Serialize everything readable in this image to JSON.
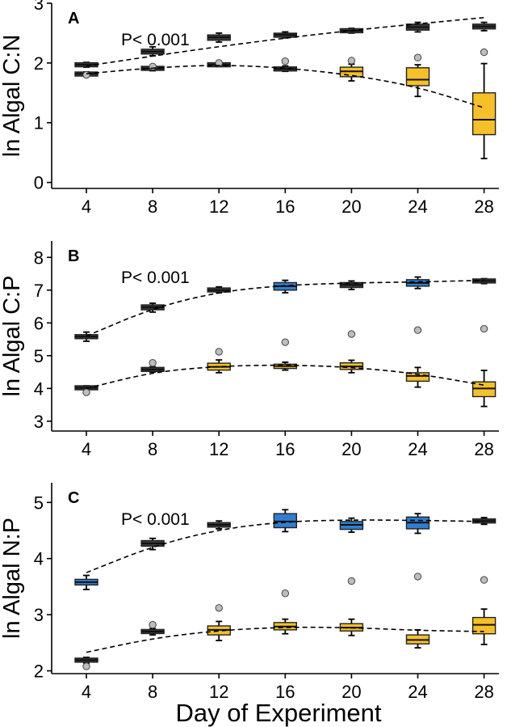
{
  "xlabel": "Day of Experiment",
  "chart_data": [
    {
      "type": "box",
      "panel_label": "A",
      "annotation": "P< 0.001",
      "ylabel": "ln Algal C:N",
      "ylim": [
        -0.1,
        3.0
      ],
      "yticks": [
        0,
        1,
        2,
        3
      ],
      "categories": [
        4,
        8,
        12,
        16,
        20,
        24,
        28
      ],
      "series": [
        {
          "color": "#3a3a3a",
          "boxes": [
            {
              "day": 4,
              "q1": 1.95,
              "median": 1.97,
              "q3": 1.99,
              "lo": 1.93,
              "hi": 2.01
            },
            {
              "day": 8,
              "q1": 2.15,
              "median": 2.19,
              "q3": 2.23,
              "lo": 2.12,
              "hi": 2.27
            },
            {
              "day": 12,
              "q1": 2.38,
              "median": 2.43,
              "q3": 2.47,
              "lo": 2.35,
              "hi": 2.5
            },
            {
              "day": 16,
              "q1": 2.44,
              "median": 2.47,
              "q3": 2.49,
              "lo": 2.42,
              "hi": 2.52
            },
            {
              "day": 20,
              "q1": 2.52,
              "median": 2.54,
              "q3": 2.56,
              "lo": 2.5,
              "hi": 2.58
            },
            {
              "day": 24,
              "q1": 2.55,
              "median": 2.6,
              "q3": 2.65,
              "lo": 2.52,
              "hi": 2.68
            },
            {
              "day": 28,
              "q1": 2.57,
              "median": 2.61,
              "q3": 2.65,
              "lo": 2.54,
              "hi": 2.68
            }
          ],
          "fit": [
            [
              4,
              1.95
            ],
            [
              12,
              2.28
            ],
            [
              20,
              2.55
            ],
            [
              28,
              2.76
            ]
          ]
        },
        {
          "boxes": [
            {
              "day": 4,
              "q1": 1.79,
              "median": 1.82,
              "q3": 1.84,
              "lo": 1.78,
              "hi": 1.85,
              "fill": "#3a3a3a",
              "outliers": [
                1.8
              ]
            },
            {
              "day": 8,
              "q1": 1.89,
              "median": 1.91,
              "q3": 1.93,
              "lo": 1.87,
              "hi": 1.95,
              "fill": "#3a3a3a",
              "outliers": [
                1.94
              ]
            },
            {
              "day": 12,
              "q1": 1.95,
              "median": 1.97,
              "q3": 1.99,
              "lo": 1.94,
              "hi": 2.01,
              "fill": "#3a3a3a",
              "outliers": [
                2.0
              ]
            },
            {
              "day": 16,
              "q1": 1.87,
              "median": 1.9,
              "q3": 1.93,
              "lo": 1.86,
              "hi": 1.95,
              "fill": "#3a3a3a",
              "outliers": [
                2.03
              ]
            },
            {
              "day": 20,
              "q1": 1.77,
              "median": 1.86,
              "q3": 1.93,
              "lo": 1.7,
              "hi": 1.98,
              "fill": "#f5c02a",
              "outliers": [
                2.04
              ]
            },
            {
              "day": 24,
              "q1": 1.62,
              "median": 1.72,
              "q3": 1.92,
              "lo": 1.44,
              "hi": 1.97,
              "fill": "#f5c02a",
              "outliers": [
                2.09
              ]
            },
            {
              "day": 28,
              "q1": 0.8,
              "median": 1.05,
              "q3": 1.5,
              "lo": 0.4,
              "hi": 1.99,
              "fill": "#f5c02a",
              "outliers": [
                2.18
              ]
            }
          ],
          "fit": [
            [
              4,
              1.82
            ],
            [
              8,
              1.92
            ],
            [
              12,
              1.97
            ],
            [
              16,
              1.92
            ],
            [
              20,
              1.8
            ],
            [
              24,
              1.6
            ],
            [
              28,
              1.25
            ]
          ]
        }
      ]
    },
    {
      "type": "box",
      "panel_label": "B",
      "annotation": "P< 0.001",
      "ylabel": "ln Algal C:P",
      "ylim": [
        2.7,
        8.5
      ],
      "yticks": [
        3,
        4,
        5,
        6,
        7,
        8
      ],
      "categories": [
        4,
        8,
        12,
        16,
        20,
        24,
        28
      ],
      "series": [
        {
          "boxes": [
            {
              "day": 4,
              "q1": 5.52,
              "median": 5.58,
              "q3": 5.64,
              "lo": 5.44,
              "hi": 5.72,
              "fill": "#3a3a3a"
            },
            {
              "day": 8,
              "q1": 6.4,
              "median": 6.48,
              "q3": 6.55,
              "lo": 6.33,
              "hi": 6.6,
              "fill": "#3a3a3a"
            },
            {
              "day": 12,
              "q1": 6.96,
              "median": 7.0,
              "q3": 7.05,
              "lo": 6.92,
              "hi": 7.1,
              "fill": "#3a3a3a"
            },
            {
              "day": 16,
              "q1": 7.0,
              "median": 7.12,
              "q3": 7.23,
              "lo": 6.92,
              "hi": 7.3,
              "fill": "#2f7fd0"
            },
            {
              "day": 20,
              "q1": 7.08,
              "median": 7.16,
              "q3": 7.23,
              "lo": 7.02,
              "hi": 7.28,
              "fill": "#3a3a3a"
            },
            {
              "day": 24,
              "q1": 7.12,
              "median": 7.22,
              "q3": 7.32,
              "lo": 7.05,
              "hi": 7.4,
              "fill": "#2f7fd0"
            },
            {
              "day": 28,
              "q1": 7.24,
              "median": 7.28,
              "q3": 7.32,
              "lo": 7.2,
              "hi": 7.35,
              "fill": "#3a3a3a"
            }
          ],
          "fit": [
            [
              4,
              5.6
            ],
            [
              8,
              6.45
            ],
            [
              12,
              6.95
            ],
            [
              16,
              7.15
            ],
            [
              20,
              7.22
            ],
            [
              24,
              7.25
            ],
            [
              28,
              7.3
            ]
          ]
        },
        {
          "boxes": [
            {
              "day": 4,
              "q1": 3.98,
              "median": 4.02,
              "q3": 4.06,
              "lo": 3.96,
              "hi": 4.08,
              "fill": "#3a3a3a",
              "outliers": [
                3.88
              ]
            },
            {
              "day": 8,
              "q1": 4.54,
              "median": 4.58,
              "q3": 4.62,
              "lo": 4.5,
              "hi": 4.66,
              "fill": "#3a3a3a",
              "outliers": [
                4.78
              ]
            },
            {
              "day": 12,
              "q1": 4.56,
              "median": 4.66,
              "q3": 4.77,
              "lo": 4.48,
              "hi": 4.87,
              "fill": "#f5c02a",
              "outliers": [
                5.12
              ]
            },
            {
              "day": 16,
              "q1": 4.61,
              "median": 4.68,
              "q3": 4.74,
              "lo": 4.56,
              "hi": 4.8,
              "fill": "#f5c02a",
              "outliers": [
                5.41
              ]
            },
            {
              "day": 20,
              "q1": 4.58,
              "median": 4.67,
              "q3": 4.78,
              "lo": 4.48,
              "hi": 4.86,
              "fill": "#f5c02a",
              "outliers": [
                5.66
              ]
            },
            {
              "day": 24,
              "q1": 4.22,
              "median": 4.38,
              "q3": 4.48,
              "lo": 4.04,
              "hi": 4.64,
              "fill": "#f5c02a",
              "outliers": [
                5.78
              ]
            },
            {
              "day": 28,
              "q1": 3.75,
              "median": 4.0,
              "q3": 4.2,
              "lo": 3.45,
              "hi": 4.55,
              "fill": "#f5c02a",
              "outliers": [
                5.82
              ]
            }
          ],
          "fit": [
            [
              4,
              4.0
            ],
            [
              8,
              4.5
            ],
            [
              12,
              4.68
            ],
            [
              16,
              4.72
            ],
            [
              20,
              4.65
            ],
            [
              24,
              4.45
            ],
            [
              28,
              4.1
            ]
          ]
        }
      ]
    },
    {
      "type": "box",
      "panel_label": "C",
      "annotation": "P< 0.001",
      "ylabel": "ln Algal N:P",
      "ylim": [
        1.95,
        5.35
      ],
      "yticks": [
        2,
        3,
        4,
        5
      ],
      "categories": [
        4,
        8,
        12,
        16,
        20,
        24,
        28
      ],
      "series": [
        {
          "boxes": [
            {
              "day": 4,
              "q1": 3.53,
              "median": 3.58,
              "q3": 3.63,
              "lo": 3.45,
              "hi": 3.7,
              "fill": "#2f7fd0"
            },
            {
              "day": 8,
              "q1": 4.22,
              "median": 4.27,
              "q3": 4.32,
              "lo": 4.16,
              "hi": 4.36,
              "fill": "#3a3a3a"
            },
            {
              "day": 12,
              "q1": 4.56,
              "median": 4.6,
              "q3": 4.64,
              "lo": 4.53,
              "hi": 4.67,
              "fill": "#3a3a3a"
            },
            {
              "day": 16,
              "q1": 4.55,
              "median": 4.66,
              "q3": 4.8,
              "lo": 4.48,
              "hi": 4.87,
              "fill": "#2f7fd0"
            },
            {
              "day": 20,
              "q1": 4.52,
              "median": 4.6,
              "q3": 4.66,
              "lo": 4.47,
              "hi": 4.72,
              "fill": "#2f7fd0"
            },
            {
              "day": 24,
              "q1": 4.53,
              "median": 4.64,
              "q3": 4.74,
              "lo": 4.45,
              "hi": 4.8,
              "fill": "#2f7fd0"
            },
            {
              "day": 28,
              "q1": 4.64,
              "median": 4.67,
              "q3": 4.7,
              "lo": 4.61,
              "hi": 4.73,
              "fill": "#3a3a3a"
            }
          ],
          "fit": [
            [
              4,
              3.75
            ],
            [
              8,
              4.22
            ],
            [
              12,
              4.52
            ],
            [
              16,
              4.66
            ],
            [
              20,
              4.69
            ],
            [
              24,
              4.68
            ],
            [
              28,
              4.66
            ]
          ]
        },
        {
          "boxes": [
            {
              "day": 4,
              "q1": 2.16,
              "median": 2.19,
              "q3": 2.22,
              "lo": 2.14,
              "hi": 2.24,
              "fill": "#3a3a3a",
              "outliers": [
                2.08
              ]
            },
            {
              "day": 8,
              "q1": 2.67,
              "median": 2.7,
              "q3": 2.73,
              "lo": 2.64,
              "hi": 2.75,
              "fill": "#3a3a3a",
              "outliers": [
                2.82
              ]
            },
            {
              "day": 12,
              "q1": 2.64,
              "median": 2.73,
              "q3": 2.8,
              "lo": 2.54,
              "hi": 2.88,
              "fill": "#f5c02a",
              "outliers": [
                3.12
              ]
            },
            {
              "day": 16,
              "q1": 2.73,
              "median": 2.79,
              "q3": 2.86,
              "lo": 2.66,
              "hi": 2.92,
              "fill": "#f5c02a",
              "outliers": [
                3.38
              ]
            },
            {
              "day": 20,
              "q1": 2.71,
              "median": 2.77,
              "q3": 2.84,
              "lo": 2.63,
              "hi": 2.92,
              "fill": "#f5c02a",
              "outliers": [
                3.6
              ]
            },
            {
              "day": 24,
              "q1": 2.48,
              "median": 2.55,
              "q3": 2.64,
              "lo": 2.41,
              "hi": 2.73,
              "fill": "#f5c02a",
              "outliers": [
                3.68
              ]
            },
            {
              "day": 28,
              "q1": 2.66,
              "median": 2.82,
              "q3": 2.95,
              "lo": 2.47,
              "hi": 3.1,
              "fill": "#f5c02a",
              "outliers": [
                3.62
              ]
            }
          ],
          "fit": [
            [
              4,
              2.33
            ],
            [
              8,
              2.58
            ],
            [
              12,
              2.72
            ],
            [
              16,
              2.78
            ],
            [
              20,
              2.77
            ],
            [
              24,
              2.72
            ],
            [
              28,
              2.7
            ]
          ]
        }
      ]
    }
  ]
}
